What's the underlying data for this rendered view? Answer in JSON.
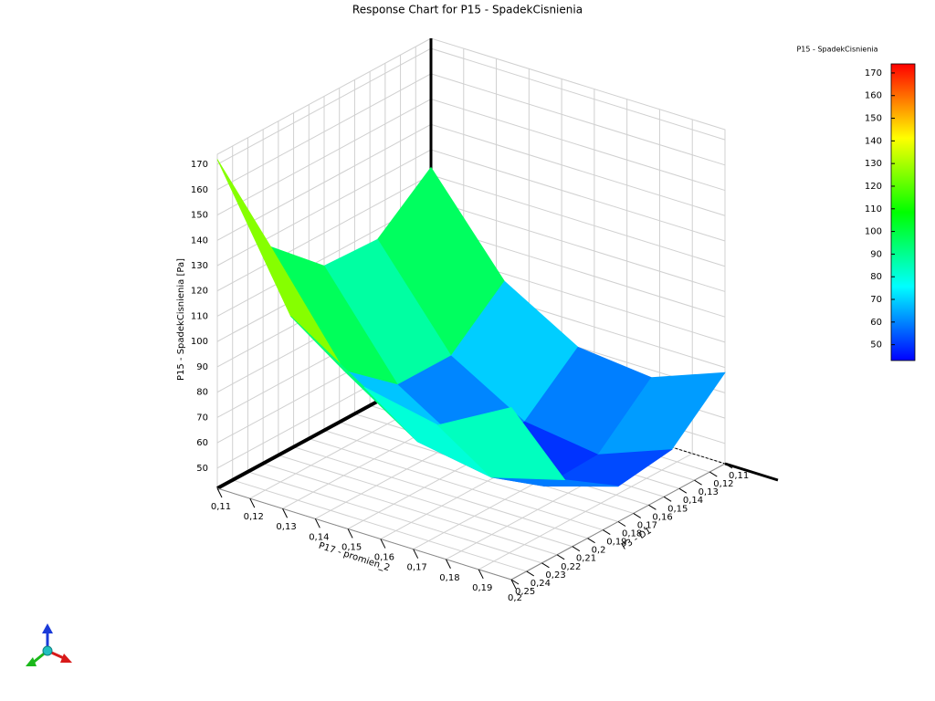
{
  "chart_data": {
    "type": "surface",
    "title": "Response Chart for P15 - SpadekCisnienia",
    "x_label": "P17 - promien_2",
    "y_label": "P3 - D1",
    "z_label": "P15 - SpadekCisnienia  [Pa]",
    "x": [
      0.11,
      0.1325,
      0.155,
      0.1775,
      0.2
    ],
    "y": [
      0.11,
      0.145,
      0.18,
      0.215,
      0.25
    ],
    "z": [
      [
        123,
        106,
        107,
        126,
        172
      ],
      [
        87,
        69,
        69,
        86,
        119
      ],
      [
        70,
        52,
        51,
        67,
        100
      ],
      [
        67,
        48,
        47,
        62,
        94
      ],
      [
        78,
        59,
        56,
        70,
        110
      ]
    ],
    "xlim": [
      0.11,
      0.2
    ],
    "ylim": [
      0.11,
      0.25
    ],
    "zlim": [
      42,
      174
    ],
    "xticks": [
      {
        "value": 0.11,
        "label": "0,11"
      },
      {
        "value": 0.12,
        "label": "0,12"
      },
      {
        "value": 0.13,
        "label": "0,13"
      },
      {
        "value": 0.14,
        "label": "0,14"
      },
      {
        "value": 0.15,
        "label": "0,15"
      },
      {
        "value": 0.16,
        "label": "0,16"
      },
      {
        "value": 0.17,
        "label": "0,17"
      },
      {
        "value": 0.18,
        "label": "0,18"
      },
      {
        "value": 0.19,
        "label": "0,19"
      },
      {
        "value": 0.2,
        "label": "0,2"
      }
    ],
    "yticks": [
      {
        "value": 0.11,
        "label": "0,11"
      },
      {
        "value": 0.12,
        "label": "0,12"
      },
      {
        "value": 0.13,
        "label": "0,13"
      },
      {
        "value": 0.14,
        "label": "0,14"
      },
      {
        "value": 0.15,
        "label": "0,15"
      },
      {
        "value": 0.16,
        "label": "0,16"
      },
      {
        "value": 0.17,
        "label": "0,17"
      },
      {
        "value": 0.18,
        "label": "0,18"
      },
      {
        "value": 0.19,
        "label": "0,19"
      },
      {
        "value": 0.2,
        "label": "0,2"
      },
      {
        "value": 0.21,
        "label": "0,21"
      },
      {
        "value": 0.22,
        "label": "0,22"
      },
      {
        "value": 0.23,
        "label": "0,23"
      },
      {
        "value": 0.24,
        "label": "0,24"
      },
      {
        "value": 0.25,
        "label": "0,25"
      }
    ],
    "zticks": [
      50,
      60,
      70,
      80,
      90,
      100,
      110,
      120,
      130,
      140,
      150,
      160,
      170
    ],
    "grid": true,
    "colorbar": {
      "title": "P15 - SpadekCisnienia",
      "lim": [
        43,
        174
      ],
      "ticks": [
        50,
        60,
        70,
        80,
        90,
        100,
        110,
        120,
        130,
        140,
        150,
        160,
        170
      ],
      "colors": [
        "#0000ff",
        "#00ffff",
        "#00ff00",
        "#ffff00",
        "#ff0000"
      ]
    }
  }
}
